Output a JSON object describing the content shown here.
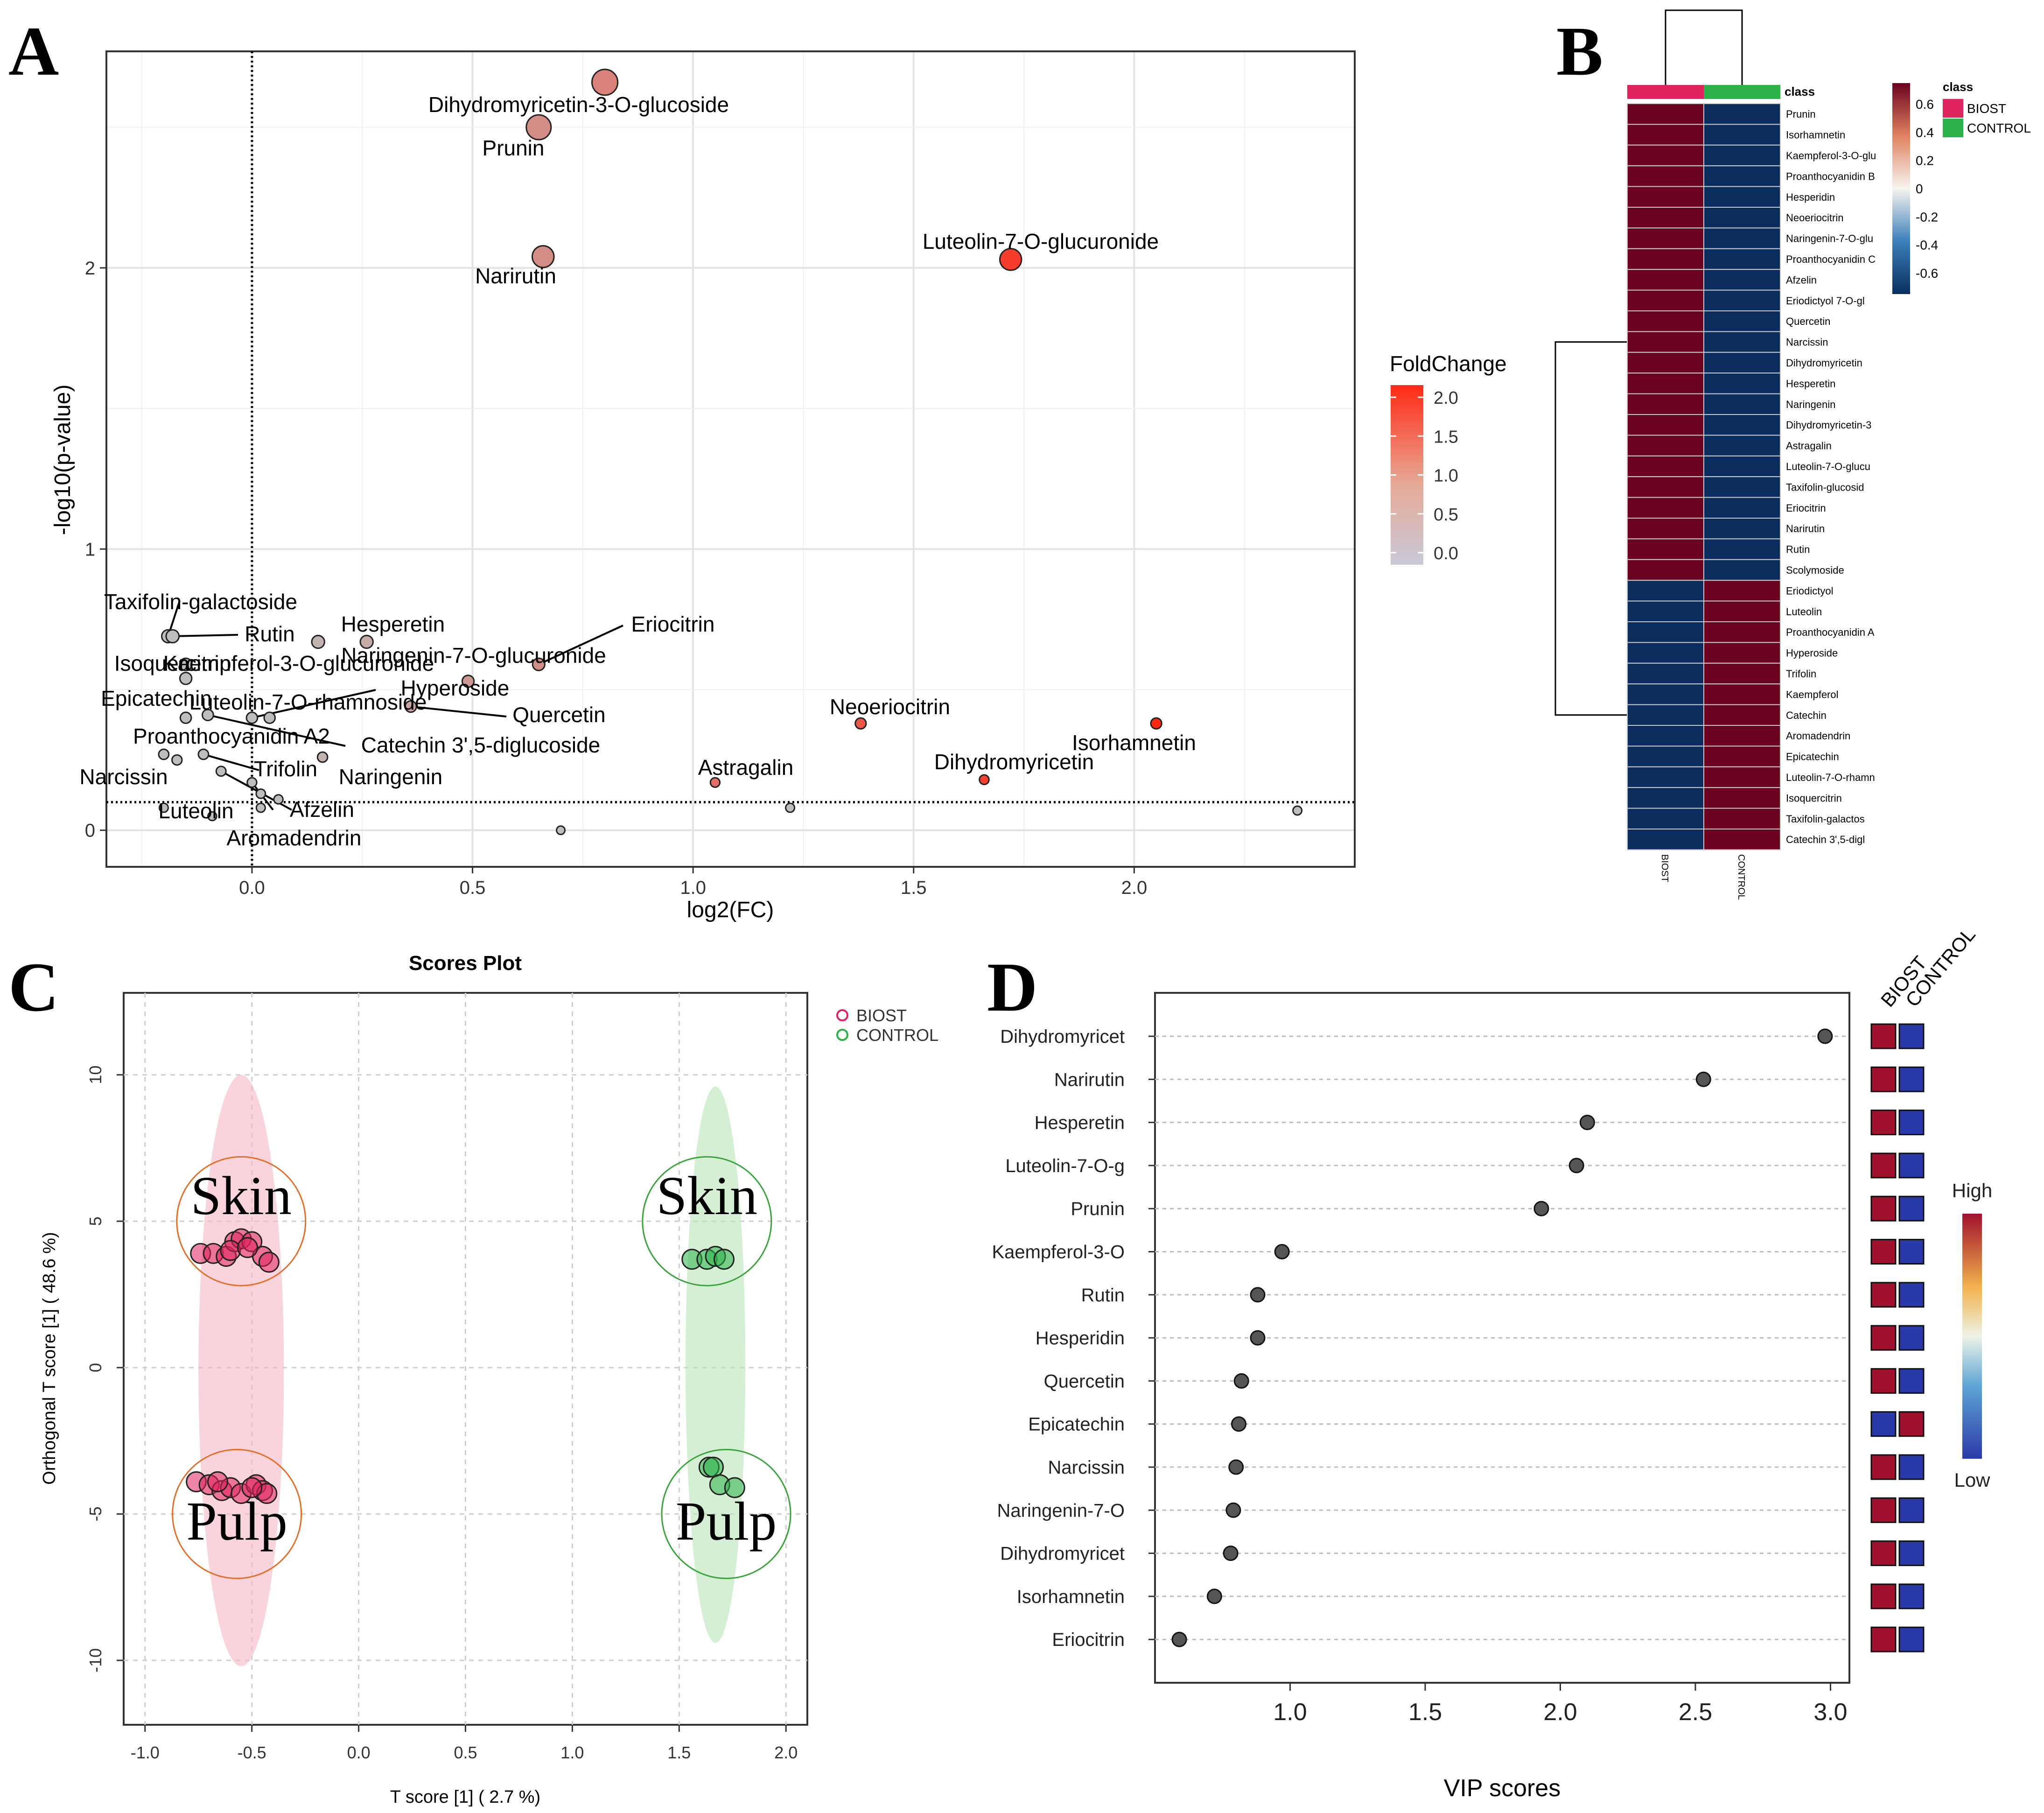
{
  "panel_letters": [
    "A",
    "B",
    "C",
    "D"
  ],
  "chart_data": [
    {
      "id": "A",
      "type": "scatter",
      "title": "",
      "xlabel": "log2(FC)",
      "ylabel": "-log10(p-value)",
      "xlim": [
        -0.33,
        2.5
      ],
      "ylim": [
        -0.13,
        2.77
      ],
      "xticks": [
        "0.0",
        "0.5",
        "1.0",
        "1.5",
        "2.0"
      ],
      "xtick_values": [
        0,
        0.5,
        1.0,
        1.5,
        2.0
      ],
      "yticks": [
        "0",
        "1",
        "2"
      ],
      "ytick_values": [
        0,
        1,
        2
      ],
      "vline": 0,
      "hline": 0.1,
      "legend": {
        "title": "FoldChange",
        "ticks": [
          "0.0",
          "0.5",
          "1.0",
          "1.5",
          "2.0"
        ],
        "tick_values": [
          0,
          0.5,
          1.0,
          1.5,
          2.0
        ],
        "position": "right"
      },
      "points": [
        {
          "label": "Dihydromyricetin-3-O-glucoside",
          "x": 0.8,
          "y": 2.66,
          "fc": 0.8
        },
        {
          "label": "Prunin",
          "x": 0.65,
          "y": 2.5,
          "fc": 0.65
        },
        {
          "label": "Narirutin",
          "x": 0.66,
          "y": 2.04,
          "fc": 0.66
        },
        {
          "label": "Luteolin-7-O-glucuronide",
          "x": 1.72,
          "y": 2.03,
          "fc": 1.72
        },
        {
          "label": "Taxifolin-galactoside",
          "x": -0.19,
          "y": 0.69,
          "fc": -0.19
        },
        {
          "label": "Rutin",
          "x": -0.18,
          "y": 0.69,
          "fc": -0.18
        },
        {
          "label": "Hesperetin",
          "x": 0.26,
          "y": 0.67,
          "fc": 0.26
        },
        {
          "label": "Naringenin-7-O-glucuronide",
          "x": 0.15,
          "y": 0.67,
          "fc": 0.15
        },
        {
          "label": "Eriocitrin",
          "x": 0.65,
          "y": 0.59,
          "fc": 0.65
        },
        {
          "label": "Isoquercitrin",
          "x": -0.15,
          "y": 0.59,
          "fc": -0.15
        },
        {
          "label": "Kaempferol-3-O-glucuronide",
          "x": -0.15,
          "y": 0.54,
          "fc": -0.15
        },
        {
          "label": "Hyperoside",
          "x": 0.49,
          "y": 0.53,
          "fc": 0.49
        },
        {
          "label": "Epicatechin",
          "x": -0.15,
          "y": 0.4,
          "fc": -0.15
        },
        {
          "label": "Luteolin-7-O-rhamnoside",
          "x": 0.0,
          "y": 0.4,
          "fc": 0.0
        },
        {
          "label": "Quercetin",
          "x": 0.36,
          "y": 0.44,
          "fc": 0.36
        },
        {
          "label": "Proanthocyanidin A2",
          "x": 0.04,
          "y": 0.4,
          "fc": 0.04
        },
        {
          "label": "Catechin 3',5-diglucoside",
          "x": -0.1,
          "y": 0.41,
          "fc": -0.1
        },
        {
          "label": "Trifolin",
          "x": -0.11,
          "y": 0.27,
          "fc": -0.11
        },
        {
          "label": "Naringenin",
          "x": 0.16,
          "y": 0.26,
          "fc": 0.16
        },
        {
          "label": "Narcissin",
          "x": -0.2,
          "y": 0.27,
          "fc": -0.2
        },
        {
          "label": "Luteolin",
          "x": -0.17,
          "y": 0.25,
          "fc": -0.17
        },
        {
          "label": "Afzelin",
          "x": -0.07,
          "y": 0.21,
          "fc": -0.07
        },
        {
          "label": "Aromadendrin",
          "x": 0.0,
          "y": 0.17,
          "fc": 0.0
        },
        {
          "label": "Neoeriocitrin",
          "x": 1.38,
          "y": 0.38,
          "fc": 1.38
        },
        {
          "label": "Isorhamnetin",
          "x": 2.05,
          "y": 0.38,
          "fc": 2.05
        },
        {
          "label": "Astragalin",
          "x": 1.05,
          "y": 0.17,
          "fc": 1.05
        },
        {
          "label": "Dihydromyricetin",
          "x": 1.66,
          "y": 0.18,
          "fc": 1.66
        }
      ],
      "unlabeled_points": [
        {
          "x": 0.02,
          "y": 0.13,
          "fc": 0.02
        },
        {
          "x": 0.06,
          "y": 0.11,
          "fc": 0.06
        },
        {
          "x": 0.02,
          "y": 0.08,
          "fc": 0.02
        },
        {
          "x": -0.2,
          "y": 0.08,
          "fc": -0.2
        },
        {
          "x": -0.09,
          "y": 0.05,
          "fc": -0.09
        },
        {
          "x": 0.7,
          "y": 0.0,
          "fc": 0.0
        },
        {
          "x": 1.22,
          "y": 0.08,
          "fc": 0.0
        },
        {
          "x": 2.37,
          "y": 0.07,
          "fc": 0.0
        }
      ]
    },
    {
      "id": "B",
      "type": "heatmap",
      "columns": [
        "BIOST",
        "CONTROL"
      ],
      "column_header": "class",
      "rows": [
        {
          "name": "Prunin",
          "biost": 0.7,
          "control": -0.7
        },
        {
          "name": "Isorhamnetin",
          "biost": 0.7,
          "control": -0.7
        },
        {
          "name": "Kaempferol-3-O-glu",
          "biost": 0.7,
          "control": -0.7
        },
        {
          "name": "Proanthocyanidin B",
          "biost": 0.7,
          "control": -0.7
        },
        {
          "name": "Hesperidin",
          "biost": 0.7,
          "control": -0.7
        },
        {
          "name": "Neoeriocitrin",
          "biost": 0.7,
          "control": -0.7
        },
        {
          "name": "Naringenin-7-O-glu",
          "biost": 0.7,
          "control": -0.7
        },
        {
          "name": "Proanthocyanidin C",
          "biost": 0.7,
          "control": -0.7
        },
        {
          "name": "Afzelin",
          "biost": 0.7,
          "control": -0.7
        },
        {
          "name": "Eriodictyol 7-O-gl",
          "biost": 0.7,
          "control": -0.7
        },
        {
          "name": "Quercetin",
          "biost": 0.7,
          "control": -0.7
        },
        {
          "name": "Narcissin",
          "biost": 0.7,
          "control": -0.7
        },
        {
          "name": "Dihydromyricetin",
          "biost": 0.7,
          "control": -0.7
        },
        {
          "name": "Hesperetin",
          "biost": 0.7,
          "control": -0.7
        },
        {
          "name": "Naringenin",
          "biost": 0.7,
          "control": -0.7
        },
        {
          "name": "Dihydromyricetin-3",
          "biost": 0.7,
          "control": -0.7
        },
        {
          "name": "Astragalin",
          "biost": 0.7,
          "control": -0.7
        },
        {
          "name": "Luteolin-7-O-glucu",
          "biost": 0.7,
          "control": -0.7
        },
        {
          "name": "Taxifolin-glucosid",
          "biost": 0.7,
          "control": -0.7
        },
        {
          "name": "Eriocitrin",
          "biost": 0.7,
          "control": -0.7
        },
        {
          "name": "Narirutin",
          "biost": 0.7,
          "control": -0.7
        },
        {
          "name": "Rutin",
          "biost": 0.7,
          "control": -0.7
        },
        {
          "name": "Scolymoside",
          "biost": 0.7,
          "control": -0.7
        },
        {
          "name": "Eriodictyol",
          "biost": -0.7,
          "control": 0.7
        },
        {
          "name": "Luteolin",
          "biost": -0.7,
          "control": 0.7
        },
        {
          "name": "Proanthocyanidin A",
          "biost": -0.7,
          "control": 0.7
        },
        {
          "name": "Hyperoside",
          "biost": -0.7,
          "control": 0.7
        },
        {
          "name": "Trifolin",
          "biost": -0.7,
          "control": 0.7
        },
        {
          "name": "Kaempferol",
          "biost": -0.7,
          "control": 0.7
        },
        {
          "name": "Catechin",
          "biost": -0.7,
          "control": 0.7
        },
        {
          "name": "Aromadendrin",
          "biost": -0.7,
          "control": 0.7
        },
        {
          "name": "Epicatechin",
          "biost": -0.7,
          "control": 0.7
        },
        {
          "name": "Luteolin-7-O-rhamn",
          "biost": -0.7,
          "control": 0.7
        },
        {
          "name": "Isoquercitrin",
          "biost": -0.7,
          "control": 0.7
        },
        {
          "name": "Taxifolin-galactos",
          "biost": -0.7,
          "control": 0.7
        },
        {
          "name": "Catechin 3',5-digl",
          "biost": -0.7,
          "control": 0.7
        }
      ],
      "colorbar": {
        "ticks": [
          "0.6",
          "0.4",
          "0.2",
          "0",
          "-0.2",
          "-0.4",
          "-0.6"
        ],
        "tick_values": [
          0.6,
          0.4,
          0.2,
          0,
          -0.2,
          -0.4,
          -0.6
        ]
      },
      "class_legend": {
        "title": "class",
        "items": [
          {
            "name": "BIOST",
            "color": "#e0245e"
          },
          {
            "name": "CONTROL",
            "color": "#2bb34a"
          }
        ]
      }
    },
    {
      "id": "C",
      "type": "scatter",
      "title": "Scores Plot",
      "xlabel": "T score [1]  ( 2.7 %)",
      "ylabel": "Orthogonal T score [1]  ( 48.6 %)",
      "xlim": [
        -1.1,
        2.1
      ],
      "ylim": [
        -12.2,
        12.8
      ],
      "xticks": [
        "-1.0",
        "-0.5",
        "0.0",
        "0.5",
        "1.0",
        "1.5",
        "2.0"
      ],
      "xtick_values": [
        -1.0,
        -0.5,
        0.0,
        0.5,
        1.0,
        1.5,
        2.0
      ],
      "yticks": [
        "-10",
        "-5",
        "0",
        "5",
        "10"
      ],
      "ytick_values": [
        -10,
        -5,
        0,
        5,
        10
      ],
      "legend": [
        {
          "name": "BIOST",
          "color": "#e0245e"
        },
        {
          "name": "CONTROL",
          "color": "#2bb34a"
        }
      ],
      "annotations": [
        {
          "text": "Skin",
          "x": -0.55,
          "y": 5.0
        },
        {
          "text": "Pulp",
          "x": -0.57,
          "y": -5.0
        },
        {
          "text": "Skin",
          "x": 1.63,
          "y": 5.0
        },
        {
          "text": "Pulp",
          "x": 1.72,
          "y": -5.0
        }
      ],
      "series": [
        {
          "name": "BIOST",
          "points": [
            [
              -0.74,
              3.9
            ],
            [
              -0.68,
              3.9
            ],
            [
              -0.62,
              3.8
            ],
            [
              -0.58,
              4.3
            ],
            [
              -0.55,
              4.4
            ],
            [
              -0.5,
              4.3
            ],
            [
              -0.45,
              3.8
            ],
            [
              -0.42,
              3.6
            ],
            [
              -0.6,
              4.0
            ],
            [
              -0.52,
              4.1
            ],
            [
              -0.76,
              -3.9
            ],
            [
              -0.7,
              -4.0
            ],
            [
              -0.64,
              -4.2
            ],
            [
              -0.6,
              -4.1
            ],
            [
              -0.55,
              -4.3
            ],
            [
              -0.48,
              -4.0
            ],
            [
              -0.45,
              -4.2
            ],
            [
              -0.43,
              -4.3
            ],
            [
              -0.66,
              -3.9
            ],
            [
              -0.5,
              -4.1
            ]
          ]
        },
        {
          "name": "CONTROL",
          "points": [
            [
              1.56,
              3.7
            ],
            [
              1.63,
              3.7
            ],
            [
              1.67,
              3.8
            ],
            [
              1.71,
              3.7
            ],
            [
              1.64,
              -3.4
            ],
            [
              1.66,
              -3.4
            ],
            [
              1.69,
              -4.0
            ],
            [
              1.76,
              -4.1
            ]
          ]
        }
      ],
      "ellipses": [
        {
          "group": "BIOST",
          "cx": -0.55,
          "cy": -0.1,
          "rx": 0.2,
          "ry": 10.1
        },
        {
          "group": "CONTROL",
          "cx": 1.67,
          "cy": 0.1,
          "rx": 0.14,
          "ry": 9.5
        }
      ]
    },
    {
      "id": "D",
      "type": "scatter",
      "title": "",
      "xlabel": "VIP scores",
      "xlim": [
        0.5,
        3.07
      ],
      "xticks": [
        "1.0",
        "1.5",
        "2.0",
        "2.5",
        "3.0"
      ],
      "xtick_values": [
        1.0,
        1.5,
        2.0,
        2.5,
        3.0
      ],
      "column_headers": [
        "BIOST",
        "CONTROL"
      ],
      "colorbar": {
        "high": "High",
        "low": "Low"
      },
      "rows": [
        {
          "name": "Dihydromyricet",
          "vip": 2.98,
          "biost": "high",
          "control": "low"
        },
        {
          "name": "Narirutin",
          "vip": 2.53,
          "biost": "high",
          "control": "low"
        },
        {
          "name": "Hesperetin",
          "vip": 2.1,
          "biost": "high",
          "control": "low"
        },
        {
          "name": "Luteolin-7-O-g",
          "vip": 2.06,
          "biost": "high",
          "control": "low"
        },
        {
          "name": "Prunin",
          "vip": 1.93,
          "biost": "high",
          "control": "low"
        },
        {
          "name": "Kaempferol-3-O",
          "vip": 0.97,
          "biost": "high",
          "control": "low"
        },
        {
          "name": "Rutin",
          "vip": 0.88,
          "biost": "high",
          "control": "low"
        },
        {
          "name": "Hesperidin",
          "vip": 0.88,
          "biost": "high",
          "control": "low"
        },
        {
          "name": "Quercetin",
          "vip": 0.82,
          "biost": "high",
          "control": "low"
        },
        {
          "name": "Epicatechin",
          "vip": 0.81,
          "biost": "low",
          "control": "high"
        },
        {
          "name": "Narcissin",
          "vip": 0.8,
          "biost": "high",
          "control": "low"
        },
        {
          "name": "Naringenin-7-O",
          "vip": 0.79,
          "biost": "high",
          "control": "low"
        },
        {
          "name": "Dihydromyricet",
          "vip": 0.78,
          "biost": "high",
          "control": "low"
        },
        {
          "name": "Isorhamnetin",
          "vip": 0.72,
          "biost": "high",
          "control": "low"
        },
        {
          "name": "Eriocitrin",
          "vip": 0.59,
          "biost": "high",
          "control": "low"
        }
      ]
    }
  ]
}
